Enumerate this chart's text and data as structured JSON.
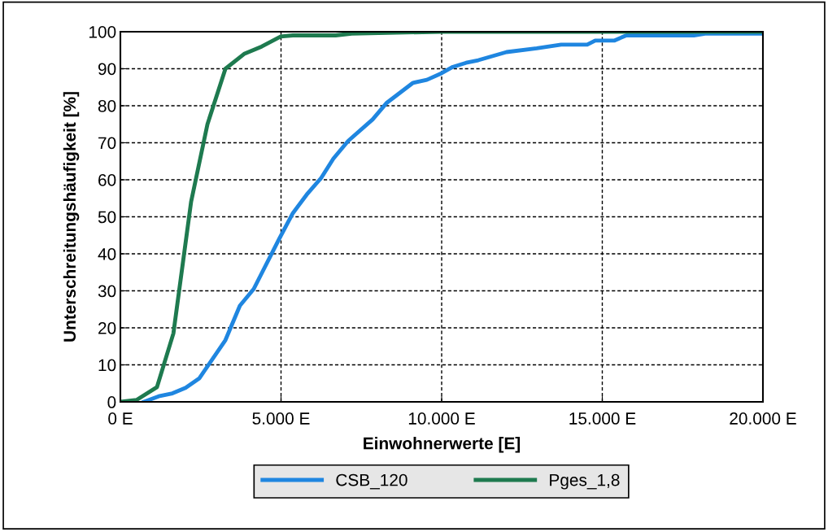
{
  "chart_data": {
    "type": "line",
    "xlabel": "Einwohnerwerte [E]",
    "ylabel": "Unterschreitungshäufigkeit [%]",
    "xlim": [
      0,
      20000
    ],
    "xticks": [
      {
        "value": 0,
        "label": "0 E"
      },
      {
        "value": 5000,
        "label": "5.000 E"
      },
      {
        "value": 10000,
        "label": "10.000 E"
      },
      {
        "value": 15000,
        "label": "15.000 E"
      },
      {
        "value": 20000,
        "label": "20.000 E"
      }
    ],
    "ylim": [
      0,
      100
    ],
    "yticks": [
      0,
      10,
      20,
      30,
      40,
      50,
      60,
      70,
      80,
      90,
      100
    ],
    "grid": true,
    "legend": "bottom",
    "marker": "none",
    "line_style": "solid",
    "series": [
      {
        "name": "CSB_120",
        "color": "#1f86e0",
        "x": [
          730,
          1190,
          1620,
          2030,
          2460,
          3270,
          3720,
          4150,
          4940,
          5370,
          5800,
          6250,
          6630,
          7090,
          7850,
          8280,
          9110,
          9540,
          10000,
          10350,
          10760,
          11140,
          12020,
          12960,
          13720,
          14530,
          14780,
          15370,
          15750,
          17850,
          18200,
          20000
        ],
        "values": [
          0,
          1.5,
          2.3,
          3.8,
          6.4,
          16.7,
          26,
          30.5,
          44,
          51,
          56,
          60.5,
          65.7,
          70.5,
          76.3,
          80.7,
          86.2,
          87,
          88.8,
          90.5,
          91.6,
          92.3,
          94.5,
          95.5,
          96.5,
          96.5,
          97.6,
          97.6,
          99,
          99,
          99.5,
          99.5
        ]
      },
      {
        "name": "Pges_1,8",
        "color": "#1e7a4f",
        "x": [
          0,
          500,
          1140,
          1650,
          2200,
          2710,
          3270,
          3850,
          4400,
          4990,
          5370,
          6700,
          7200,
          10000,
          20000
        ],
        "values": [
          0,
          0.5,
          4,
          18.5,
          54,
          75,
          90,
          94,
          96,
          98.7,
          99,
          99,
          99.5,
          100,
          100
        ]
      }
    ]
  }
}
